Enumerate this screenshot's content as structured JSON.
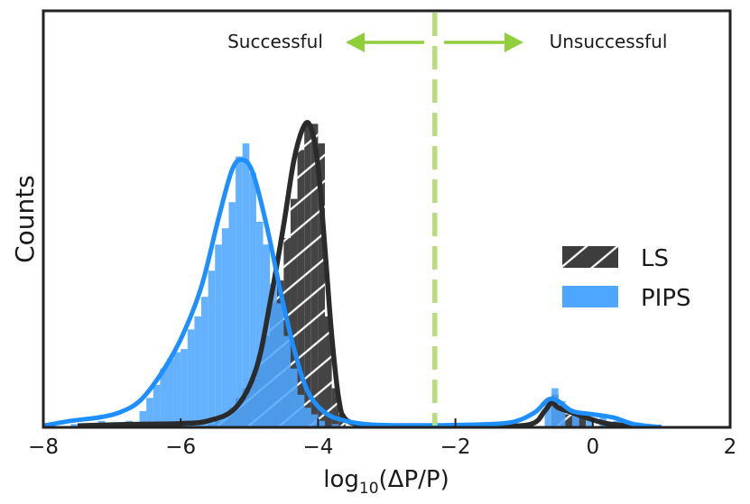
{
  "chart_data": {
    "type": "histogram",
    "xlabel": "log",
    "xlabel_sub": "10",
    "xlabel_tail": "(ΔP/P)",
    "ylabel": "Counts",
    "xlim": [
      -8,
      2
    ],
    "ylim": [
      0,
      1.0
    ],
    "xticks": [
      "−8",
      "−6",
      "−4",
      "−2",
      "0",
      "2"
    ],
    "grid": false,
    "legend_position": "center-right",
    "threshold_x": -2.3,
    "annotations": {
      "left": "Successful",
      "right": "Unsuccessful"
    },
    "colors": {
      "ls": "#444444",
      "ls_kde": "#2b2b2b",
      "pips": "#4da6ff",
      "pips_kde": "#1e8fff",
      "threshold": "#b8de7a",
      "arrow": "#8fcf3c"
    },
    "bin_width": 0.1,
    "series": [
      {
        "name": "LS",
        "hatch": "diagonal",
        "bins": [
          [
            -5.6,
            0.01
          ],
          [
            -5.5,
            0.02
          ],
          [
            -5.4,
            0.04
          ],
          [
            -5.3,
            0.06
          ],
          [
            -5.2,
            0.09
          ],
          [
            -5.1,
            0.12
          ],
          [
            -5.0,
            0.15
          ],
          [
            -4.9,
            0.22
          ],
          [
            -4.8,
            0.28
          ],
          [
            -4.7,
            0.39
          ],
          [
            -4.6,
            0.45
          ],
          [
            -4.5,
            0.58
          ],
          [
            -4.4,
            0.7
          ],
          [
            -4.3,
            0.85
          ],
          [
            -4.2,
            0.93
          ],
          [
            -4.1,
            0.93
          ],
          [
            -4.0,
            0.87
          ],
          [
            -3.9,
            0.34
          ],
          [
            -3.8,
            0.12
          ],
          [
            -3.7,
            0.04
          ],
          [
            -0.6,
            0.1
          ],
          [
            -0.5,
            0.05
          ],
          [
            -0.4,
            0.04
          ],
          [
            -0.3,
            0.04
          ],
          [
            -0.2,
            0.03
          ]
        ],
        "kde": [
          [
            -7.5,
            0.005
          ],
          [
            -7.0,
            0.008
          ],
          [
            -6.5,
            0.01
          ],
          [
            -6.0,
            0.012
          ],
          [
            -5.6,
            0.02
          ],
          [
            -5.2,
            0.06
          ],
          [
            -4.9,
            0.18
          ],
          [
            -4.7,
            0.38
          ],
          [
            -4.5,
            0.62
          ],
          [
            -4.35,
            0.82
          ],
          [
            -4.2,
            0.925
          ],
          [
            -4.1,
            0.915
          ],
          [
            -4.0,
            0.8
          ],
          [
            -3.9,
            0.55
          ],
          [
            -3.8,
            0.28
          ],
          [
            -3.7,
            0.09
          ],
          [
            -3.6,
            0.025
          ],
          [
            -3.3,
            0.008
          ],
          [
            -2.5,
            0.004
          ],
          [
            -1.5,
            0.004
          ],
          [
            -0.9,
            0.01
          ],
          [
            -0.7,
            0.05
          ],
          [
            -0.6,
            0.075
          ],
          [
            -0.5,
            0.06
          ],
          [
            -0.3,
            0.045
          ],
          [
            -0.1,
            0.03
          ],
          [
            0.2,
            0.012
          ],
          [
            0.6,
            0.004
          ],
          [
            1.0,
            0.0
          ]
        ]
      },
      {
        "name": "PIPS",
        "hatch": "none",
        "bins": [
          [
            -7.6,
            0.01
          ],
          [
            -7.2,
            0.02
          ],
          [
            -6.8,
            0.02
          ],
          [
            -6.6,
            0.05
          ],
          [
            -6.5,
            0.09
          ],
          [
            -6.4,
            0.13
          ],
          [
            -6.3,
            0.18
          ],
          [
            -6.2,
            0.21
          ],
          [
            -6.1,
            0.23
          ],
          [
            -6.0,
            0.24
          ],
          [
            -5.9,
            0.3
          ],
          [
            -5.8,
            0.34
          ],
          [
            -5.7,
            0.4
          ],
          [
            -5.6,
            0.48
          ],
          [
            -5.5,
            0.56
          ],
          [
            -5.4,
            0.61
          ],
          [
            -5.3,
            0.69
          ],
          [
            -5.2,
            0.83
          ],
          [
            -5.1,
            0.87
          ],
          [
            -5.0,
            0.78
          ],
          [
            -4.9,
            0.63
          ],
          [
            -4.8,
            0.56
          ],
          [
            -4.7,
            0.44
          ],
          [
            -4.6,
            0.38
          ],
          [
            -4.5,
            0.28
          ],
          [
            -4.4,
            0.18
          ],
          [
            -4.3,
            0.1
          ],
          [
            -4.2,
            0.06
          ],
          [
            -4.1,
            0.04
          ],
          [
            -4.0,
            0.02
          ],
          [
            -3.8,
            0.01
          ],
          [
            -0.7,
            0.08
          ],
          [
            -0.6,
            0.12
          ],
          [
            -0.5,
            0.08
          ],
          [
            -0.3,
            0.05
          ],
          [
            -0.1,
            0.03
          ],
          [
            0.1,
            0.04
          ],
          [
            0.3,
            0.02
          ]
        ],
        "kde": [
          [
            -8.0,
            0.005
          ],
          [
            -7.6,
            0.02
          ],
          [
            -7.2,
            0.03
          ],
          [
            -6.9,
            0.045
          ],
          [
            -6.6,
            0.08
          ],
          [
            -6.3,
            0.16
          ],
          [
            -6.0,
            0.27
          ],
          [
            -5.7,
            0.43
          ],
          [
            -5.45,
            0.64
          ],
          [
            -5.25,
            0.79
          ],
          [
            -5.1,
            0.82
          ],
          [
            -4.95,
            0.78
          ],
          [
            -4.75,
            0.62
          ],
          [
            -4.55,
            0.42
          ],
          [
            -4.35,
            0.24
          ],
          [
            -4.15,
            0.11
          ],
          [
            -3.9,
            0.045
          ],
          [
            -3.6,
            0.02
          ],
          [
            -3.2,
            0.008
          ],
          [
            -2.5,
            0.006
          ],
          [
            -1.8,
            0.008
          ],
          [
            -1.2,
            0.015
          ],
          [
            -0.85,
            0.045
          ],
          [
            -0.65,
            0.085
          ],
          [
            -0.5,
            0.08
          ],
          [
            -0.3,
            0.05
          ],
          [
            0.0,
            0.04
          ],
          [
            0.3,
            0.03
          ],
          [
            0.6,
            0.01
          ],
          [
            1.0,
            0.0
          ]
        ]
      }
    ]
  }
}
